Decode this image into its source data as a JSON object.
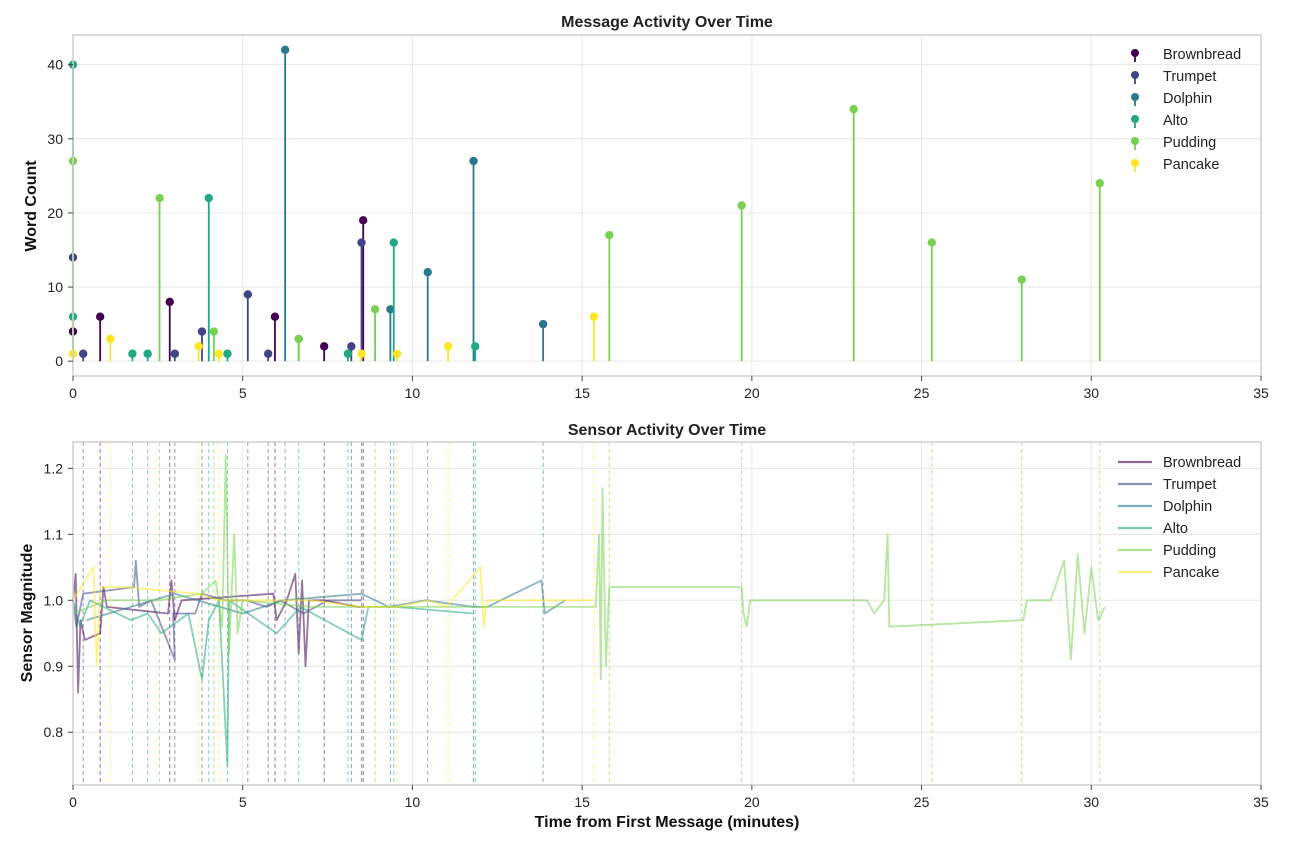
{
  "chart_data": [
    {
      "type": "scatter",
      "subtype": "stem",
      "title": "Message Activity Over Time",
      "xlabel": "",
      "ylabel": "Word Count",
      "xlim": [
        0,
        35
      ],
      "ylim": [
        -2,
        44
      ],
      "xticks": [
        "0",
        "5",
        "10",
        "15",
        "20",
        "25",
        "30",
        "35"
      ],
      "yticks": [
        "0",
        "10",
        "20",
        "30",
        "40"
      ],
      "legend_position": "top-right",
      "series": [
        {
          "name": "Brownbread",
          "color": "#440154",
          "points": [
            [
              0.0,
              4
            ],
            [
              0.8,
              6
            ],
            [
              2.85,
              8
            ],
            [
              5.95,
              6
            ],
            [
              7.4,
              2
            ],
            [
              8.55,
              19
            ]
          ]
        },
        {
          "name": "Trumpet",
          "color": "#414487",
          "points": [
            [
              0.0,
              14
            ],
            [
              0.3,
              1
            ],
            [
              3.0,
              1
            ],
            [
              3.8,
              4
            ],
            [
              5.15,
              9
            ],
            [
              5.75,
              1
            ],
            [
              8.2,
              2
            ],
            [
              8.5,
              16
            ]
          ]
        },
        {
          "name": "Dolphin",
          "color": "#2a788e",
          "points": [
            [
              6.25,
              42
            ],
            [
              9.35,
              7
            ],
            [
              10.45,
              12
            ],
            [
              11.8,
              27
            ],
            [
              13.85,
              5
            ]
          ]
        },
        {
          "name": "Alto",
          "color": "#22a884",
          "points": [
            [
              0.0,
              40
            ],
            [
              0.0,
              6
            ],
            [
              1.75,
              1
            ],
            [
              2.2,
              1
            ],
            [
              4.0,
              22
            ],
            [
              4.55,
              1
            ],
            [
              6.65,
              3
            ],
            [
              8.1,
              1
            ],
            [
              9.45,
              16
            ],
            [
              11.85,
              2
            ]
          ]
        },
        {
          "name": "Pudding",
          "color": "#7ad151",
          "points": [
            [
              0.0,
              27
            ],
            [
              2.55,
              22
            ],
            [
              4.15,
              4
            ],
            [
              6.65,
              3
            ],
            [
              8.9,
              7
            ],
            [
              15.8,
              17
            ],
            [
              19.7,
              21
            ],
            [
              23.0,
              34
            ],
            [
              25.3,
              16
            ],
            [
              27.95,
              11
            ],
            [
              30.25,
              24
            ]
          ]
        },
        {
          "name": "Pancake",
          "color": "#fde725",
          "points": [
            [
              0.0,
              1
            ],
            [
              1.1,
              3
            ],
            [
              3.7,
              2
            ],
            [
              4.3,
              1
            ],
            [
              8.5,
              1
            ],
            [
              9.55,
              1
            ],
            [
              11.05,
              2
            ],
            [
              15.35,
              6
            ]
          ]
        }
      ]
    },
    {
      "type": "line",
      "title": "Sensor Activity Over Time",
      "xlabel": "Time from First Message (minutes)",
      "ylabel": "Sensor Magnitude",
      "xlim": [
        0,
        35
      ],
      "ylim": [
        0.72,
        1.24
      ],
      "xticks": [
        "0",
        "5",
        "10",
        "15",
        "20",
        "25",
        "30",
        "35"
      ],
      "yticks": [
        "0.8",
        "0.9",
        "1.0",
        "1.1",
        "1.2"
      ],
      "legend_position": "top-right",
      "series": [
        {
          "name": "Brownbread",
          "color": "#440154",
          "points": [
            [
              0.0,
              1.0
            ],
            [
              0.08,
              1.04
            ],
            [
              0.15,
              0.86
            ],
            [
              0.22,
              0.97
            ],
            [
              0.35,
              0.94
            ],
            [
              0.8,
              0.95
            ],
            [
              0.9,
              1.02
            ],
            [
              1.0,
              0.99
            ],
            [
              2.8,
              0.98
            ],
            [
              2.9,
              1.03
            ],
            [
              3.0,
              0.97
            ],
            [
              3.2,
              1.0
            ],
            [
              5.9,
              1.01
            ],
            [
              6.0,
              0.97
            ],
            [
              6.3,
              1.0
            ],
            [
              6.55,
              1.04
            ],
            [
              6.65,
              0.92
            ],
            [
              6.75,
              1.03
            ],
            [
              6.85,
              0.9
            ],
            [
              6.95,
              1.0
            ],
            [
              7.4,
              1.0
            ],
            [
              8.4,
              0.99
            ],
            [
              8.6,
              0.99
            ]
          ]
        },
        {
          "name": "Trumpet",
          "color": "#414487",
          "points": [
            [
              0.0,
              1.0
            ],
            [
              0.1,
              0.96
            ],
            [
              0.3,
              1.01
            ],
            [
              1.8,
              1.02
            ],
            [
              1.85,
              1.06
            ],
            [
              1.95,
              0.99
            ],
            [
              2.3,
              1.0
            ],
            [
              3.0,
              0.91
            ],
            [
              2.95,
              0.98
            ],
            [
              3.6,
              0.98
            ],
            [
              3.8,
              1.01
            ],
            [
              4.5,
              1.0
            ],
            [
              5.1,
              1.0
            ],
            [
              5.7,
              0.99
            ],
            [
              6.1,
              1.0
            ],
            [
              6.8,
              0.98
            ],
            [
              7.5,
              1.0
            ],
            [
              8.2,
              1.0
            ],
            [
              8.5,
              1.0
            ]
          ]
        },
        {
          "name": "Dolphin",
          "color": "#2a788e",
          "points": [
            [
              0.4,
              0.97
            ],
            [
              3.0,
              1.01
            ],
            [
              5.0,
              0.98
            ],
            [
              6.2,
              1.0
            ],
            [
              8.5,
              1.01
            ],
            [
              9.3,
              0.99
            ],
            [
              10.4,
              1.0
            ],
            [
              11.8,
              0.99
            ],
            [
              12.2,
              0.99
            ],
            [
              13.8,
              1.03
            ],
            [
              13.9,
              0.98
            ],
            [
              14.5,
              1.0
            ]
          ]
        },
        {
          "name": "Alto",
          "color": "#22a884",
          "points": [
            [
              0.0,
              1.0
            ],
            [
              0.2,
              0.96
            ],
            [
              0.5,
              1.0
            ],
            [
              1.7,
              0.97
            ],
            [
              2.2,
              0.98
            ],
            [
              2.6,
              0.95
            ],
            [
              3.4,
              0.98
            ],
            [
              3.8,
              0.88
            ],
            [
              4.0,
              0.97
            ],
            [
              4.3,
              1.0
            ],
            [
              4.55,
              0.75
            ],
            [
              4.6,
              1.0
            ],
            [
              6.0,
              0.95
            ],
            [
              6.7,
              0.99
            ],
            [
              8.5,
              0.94
            ],
            [
              8.7,
              0.99
            ],
            [
              9.5,
              0.99
            ],
            [
              11.8,
              0.98
            ]
          ]
        },
        {
          "name": "Pudding",
          "color": "#7ad151",
          "points": [
            [
              0.0,
              0.98
            ],
            [
              1.0,
              1.0
            ],
            [
              2.5,
              1.0
            ],
            [
              3.8,
              1.01
            ],
            [
              4.2,
              1.03
            ],
            [
              4.4,
              0.96
            ],
            [
              4.5,
              1.22
            ],
            [
              4.6,
              0.92
            ],
            [
              4.75,
              1.1
            ],
            [
              4.85,
              0.95
            ],
            [
              5.0,
              1.0
            ],
            [
              7.0,
              0.99
            ],
            [
              8.9,
              0.99
            ],
            [
              9.5,
              0.99
            ],
            [
              15.4,
              0.99
            ],
            [
              15.5,
              1.1
            ],
            [
              15.55,
              0.88
            ],
            [
              15.6,
              1.17
            ],
            [
              15.7,
              0.9
            ],
            [
              15.8,
              1.02
            ],
            [
              19.7,
              1.02
            ],
            [
              19.75,
              0.98
            ],
            [
              19.85,
              0.96
            ],
            [
              19.95,
              1.0
            ],
            [
              23.0,
              1.0
            ],
            [
              23.4,
              1.0
            ],
            [
              23.6,
              0.98
            ],
            [
              23.9,
              1.0
            ],
            [
              24.0,
              1.1
            ],
            [
              24.05,
              0.96
            ],
            [
              28.0,
              0.97
            ],
            [
              28.1,
              1.0
            ],
            [
              28.8,
              1.0
            ],
            [
              29.2,
              1.06
            ],
            [
              29.4,
              0.91
            ],
            [
              29.6,
              1.07
            ],
            [
              29.8,
              0.95
            ],
            [
              30.0,
              1.05
            ],
            [
              30.2,
              0.97
            ],
            [
              30.4,
              0.99
            ]
          ]
        },
        {
          "name": "Pancake",
          "color": "#fde725",
          "points": [
            [
              0.0,
              1.0
            ],
            [
              0.6,
              1.05
            ],
            [
              0.7,
              0.9
            ],
            [
              0.8,
              1.02
            ],
            [
              1.5,
              1.02
            ],
            [
              3.7,
              1.01
            ],
            [
              4.3,
              1.0
            ],
            [
              7.0,
              1.0
            ],
            [
              8.5,
              0.99
            ],
            [
              9.5,
              0.99
            ],
            [
              10.5,
              1.0
            ],
            [
              11.0,
              0.99
            ],
            [
              12.0,
              1.05
            ],
            [
              12.1,
              0.96
            ],
            [
              12.2,
              1.0
            ],
            [
              15.3,
              1.0
            ]
          ]
        }
      ],
      "event_markers": [
        {
          "series": "Brownbread",
          "x": [
            0.0,
            0.8,
            2.85,
            5.95,
            7.4,
            8.55
          ]
        },
        {
          "series": "Trumpet",
          "x": [
            0.3,
            3.0,
            3.8,
            5.15,
            5.75,
            8.2,
            8.5
          ]
        },
        {
          "series": "Dolphin",
          "x": [
            6.25,
            9.35,
            10.45,
            11.8,
            13.85
          ]
        },
        {
          "series": "Alto",
          "x": [
            1.75,
            2.2,
            4.0,
            4.55,
            6.65,
            8.1,
            9.45,
            11.85
          ]
        },
        {
          "series": "Pudding",
          "x": [
            2.55,
            4.15,
            8.9,
            15.8,
            19.7,
            23.0,
            25.3,
            27.95,
            30.25
          ]
        },
        {
          "series": "Pancake",
          "x": [
            1.1,
            3.7,
            4.3,
            9.55,
            11.05,
            15.35
          ]
        }
      ]
    }
  ]
}
